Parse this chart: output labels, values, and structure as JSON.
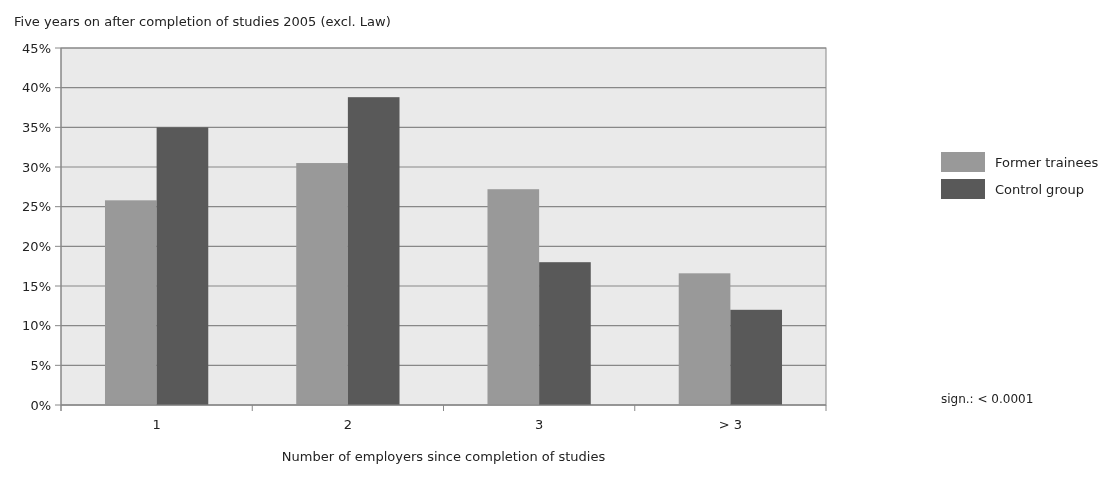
{
  "chart_data": {
    "type": "bar",
    "title": "Five years on after completion of studies 2005 (excl. Law)",
    "xlabel": "Number of employers since completion of studies",
    "categories": [
      "1",
      "2",
      "3",
      "> 3"
    ],
    "series": [
      {
        "name": "Former trainees",
        "color": "#999999",
        "values": [
          25.8,
          30.5,
          27.2,
          16.6
        ]
      },
      {
        "name": "Control group",
        "color": "#595959",
        "values": [
          35.0,
          38.8,
          18.0,
          12.0
        ]
      }
    ],
    "ylim": [
      0,
      45
    ],
    "yticks": [
      {
        "value": 0,
        "label": "0%"
      },
      {
        "value": 5,
        "label": "5%"
      },
      {
        "value": 10,
        "label": "10%"
      },
      {
        "value": 15,
        "label": "15%"
      },
      {
        "value": 20,
        "label": "20%"
      },
      {
        "value": 25,
        "label": "25%"
      },
      {
        "value": 30,
        "label": "30%"
      },
      {
        "value": 35,
        "label": "35%"
      },
      {
        "value": 40,
        "label": "40%"
      },
      {
        "value": 45,
        "label": "45%"
      }
    ],
    "grid": "y",
    "legend": "right",
    "annotations": [
      "sign.:  < 0.0001"
    ]
  }
}
